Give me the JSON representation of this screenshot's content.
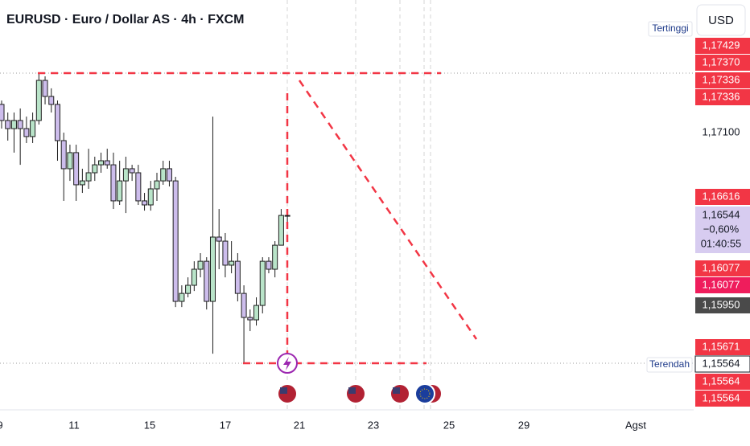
{
  "chart_data": {
    "type": "candlestick",
    "title": "EURUSD · Euro / Dollar AS · 4h · FXCM",
    "currency": "USD",
    "ylim": [
      1.15255,
      1.17983
    ],
    "yticks": [
      {
        "value": 1.171,
        "label": "1,17100"
      }
    ],
    "x_labels": [
      "9",
      "11",
      "15",
      "17",
      "21",
      "23",
      "25",
      "29",
      "Agst"
    ],
    "bull_color": "#b9e4c9",
    "bear_color": "#cdbdec",
    "outline_color": "#1e1e1e",
    "open": [
      1.17288,
      1.17181,
      1.17127,
      1.17181,
      1.17127,
      1.17074,
      1.17181,
      1.17448,
      1.17341,
      1.17288,
      1.17047,
      1.1686,
      1.16967,
      1.16753,
      1.16779,
      1.16833,
      1.16886,
      1.16913,
      1.16886,
      1.16646,
      1.16779,
      1.1686,
      1.16833,
      1.16646,
      1.16619,
      1.16726,
      1.16779,
      1.1686,
      1.16779,
      1.15977,
      1.1603,
      1.16084,
      1.16191,
      1.16244,
      1.15977,
      1.16405,
      1.16378,
      1.16218,
      1.16244,
      1.1603,
      1.1587,
      1.15854,
      1.1595,
      1.16244,
      1.16191,
      1.16351,
      1.16549
    ],
    "high": [
      1.17314,
      1.17234,
      1.17234,
      1.17261,
      1.17207,
      1.17234,
      1.17491,
      1.17475,
      1.17395,
      1.17314,
      1.171,
      1.1702,
      1.1702,
      1.1686,
      1.16993,
      1.1694,
      1.16967,
      1.16993,
      1.16967,
      1.16913,
      1.1694,
      1.16886,
      1.16886,
      1.16699,
      1.16779,
      1.16833,
      1.16913,
      1.16913,
      1.16806,
      1.16084,
      1.16137,
      1.16244,
      1.16298,
      1.16271,
      1.17207,
      1.16592,
      1.16432,
      1.16378,
      1.16298,
      1.16084,
      1.15923,
      1.16004,
      1.16271,
      1.16271,
      1.16378,
      1.16592,
      1.16592
    ],
    "low": [
      1.17127,
      1.17047,
      1.16967,
      1.16886,
      1.17031,
      1.17031,
      1.17154,
      1.17288,
      1.17234,
      1.16913,
      1.16646,
      1.16779,
      1.16646,
      1.16699,
      1.16726,
      1.16779,
      1.16833,
      1.1686,
      1.16592,
      1.16619,
      1.16565,
      1.16779,
      1.16619,
      1.16581,
      1.16581,
      1.16646,
      1.16753,
      1.16742,
      1.15939,
      1.15939,
      1.16004,
      1.16046,
      1.16137,
      1.15923,
      1.15629,
      1.16191,
      1.16137,
      1.16164,
      1.15977,
      1.15565,
      1.15779,
      1.15816,
      1.15897,
      1.16164,
      1.16137,
      1.16351,
      1.16458
    ],
    "close": [
      1.17181,
      1.17127,
      1.17181,
      1.17127,
      1.17074,
      1.17181,
      1.17448,
      1.17341,
      1.17288,
      1.17047,
      1.1686,
      1.16967,
      1.16753,
      1.16779,
      1.16833,
      1.16886,
      1.16913,
      1.16886,
      1.16646,
      1.16779,
      1.1686,
      1.16833,
      1.16646,
      1.16619,
      1.16726,
      1.16779,
      1.1686,
      1.16779,
      1.15977,
      1.1603,
      1.16084,
      1.16191,
      1.16244,
      1.15977,
      1.16405,
      1.16378,
      1.16218,
      1.16244,
      1.1603,
      1.1587,
      1.15854,
      1.1595,
      1.16244,
      1.16191,
      1.16351,
      1.16549,
      1.16544
    ],
    "high_label": "Tertinggi",
    "low_label": "Terendah",
    "price_badges": [
      {
        "value": 1.17429,
        "label": "1,17429",
        "color": "#f23645"
      },
      {
        "value": 1.1737,
        "label": "1,17370",
        "color": "#f23645"
      },
      {
        "value": 1.17336,
        "label": "1,17336",
        "color": "#f23645"
      },
      {
        "value": 1.17336,
        "label": "1,17336",
        "color": "#f23645"
      },
      {
        "value": 1.16616,
        "label": "1,16616",
        "color": "#f23645"
      },
      {
        "value": 1.16077,
        "label": "1,16077",
        "color": "#f23645"
      },
      {
        "value": 1.16077,
        "label": "1,16077",
        "color": "#ef1d5c"
      },
      {
        "value": 1.1595,
        "label": "1,15950",
        "color": "#4a4a4a"
      },
      {
        "value": 1.15671,
        "label": "1,15671",
        "color": "#f23645"
      },
      {
        "value": 1.15564,
        "label": "1,15564",
        "color": "#ffffff"
      },
      {
        "value": 1.15564,
        "label": "1,15564",
        "color": "#f23645"
      },
      {
        "value": 1.15564,
        "label": "1,15564",
        "color": "#f23645"
      }
    ],
    "current": {
      "price": {
        "value": 1.16544,
        "label": "1,16544"
      },
      "change": {
        "value": -0.6,
        "label": "−0,60%"
      },
      "countdown": "01:40:55",
      "color": "#d7ccf0"
    }
  }
}
